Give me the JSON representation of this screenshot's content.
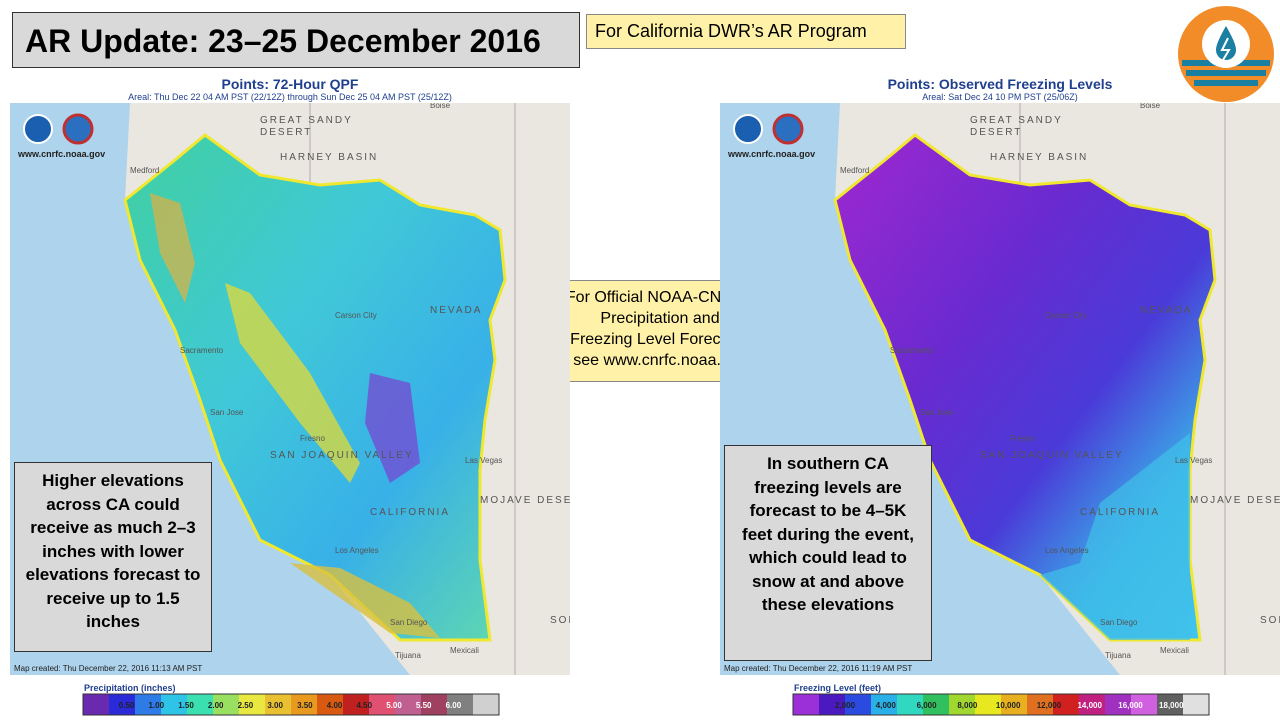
{
  "slide": {
    "title": "AR Update: 23–25 December 2016",
    "tag": "For California DWR’s AR Program",
    "center_note": [
      "For Official NOAA-CNRFC",
      "Precipitation and",
      "Freezing Level Forecasts",
      "see www.cnrfc.noaa.gov"
    ]
  },
  "maps": [
    {
      "title": "Points: 72-Hour QPF",
      "subtitle": "Areal: Thu Dec 22 04 AM PST (22/12Z) through Sun Dec 25 04 AM PST (25/12Z)",
      "site": "www.cnrfc.noaa.gov",
      "created": "Map created: Thu December 22, 2016 11:13 AM PST",
      "legend_title": "Precipitation (inches)",
      "legend_labels": [
        "0.50",
        "1.00",
        "1.50",
        "2.00",
        "2.50",
        "3.00",
        "3.50",
        "4.00",
        "4.50",
        "5.00",
        "5.50",
        "6.00"
      ],
      "note": "Higher elevations across CA could receive as much 2–3 inches with lower elevations forecast to receive up to 1.5 inches",
      "places": [
        "GREAT SANDY",
        "DESERT",
        "HARNEY BASIN",
        "Medford",
        "Boise",
        "Carson City",
        "NEVADA",
        "Sacramento",
        "San Jose",
        "Fresno",
        "SAN JOAQUIN VALLEY",
        "Las Vegas",
        "MOJAVE DESERT",
        "CALIFORNIA",
        "Los Angeles",
        "San Diego",
        "Tijuana",
        "Mexicali",
        "SONORA"
      ]
    },
    {
      "title": "Points: Observed Freezing Levels",
      "subtitle": "Areal: Sat Dec 24 10 PM PST (25/06Z)",
      "site": "www.cnrfc.noaa.gov",
      "created": "Map created: Thu December 22, 2016 11:19 AM PST",
      "legend_title": "Freezing Level (feet)",
      "legend_labels": [
        "2,000",
        "4,000",
        "6,000",
        "8,000",
        "10,000",
        "12,000",
        "14,000",
        "16,000",
        "18,000"
      ],
      "note": "In southern CA freezing levels are forecast to be 4–5K feet during the event, which could lead to snow at and above these elevations",
      "places": [
        "GREAT SANDY",
        "DESERT",
        "HARNEY BASIN",
        "Medford",
        "Boise",
        "Carson City",
        "NEVADA",
        "Sacramento",
        "San Jose",
        "Fresno",
        "SAN JOAQUIN VALLEY",
        "Las Vegas",
        "MOJAVE DESERT",
        "CALIFORNIA",
        "Los Angeles",
        "San Diego",
        "Tijuana",
        "Mexicali",
        "SONORA"
      ]
    }
  ]
}
